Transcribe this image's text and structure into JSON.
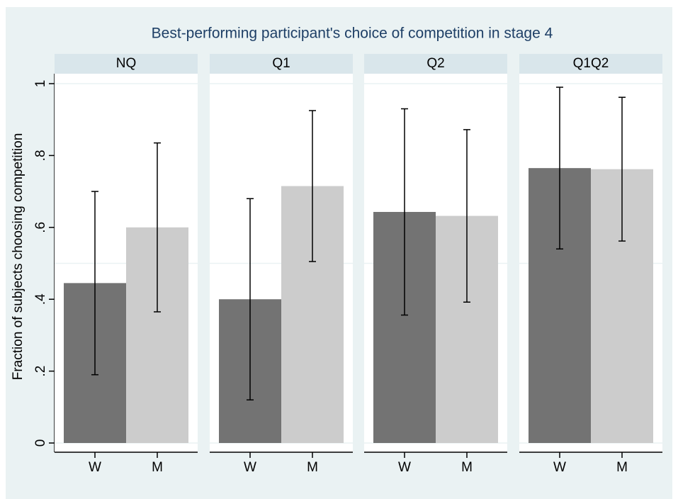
{
  "chart_data": {
    "type": "bar",
    "title": "Best-performing participant's choice of competition in stage 4",
    "ylabel": "Fraction of subjects choosing competition",
    "ylim": [
      0,
      1
    ],
    "yticks": [
      0,
      {
        "value": 0.2,
        "label": ".2"
      },
      {
        "value": 0.4,
        "label": ".4"
      },
      {
        "value": 0.6,
        "label": ".6"
      },
      {
        "value": 0.8,
        "label": ".8"
      },
      1
    ],
    "ygrid": [
      0,
      0.5,
      1
    ],
    "colors": [
      "#737373",
      "#cccccc"
    ],
    "panels": [
      {
        "title": "NQ",
        "categories": [
          "W",
          "M"
        ],
        "values": [
          0.445,
          0.6
        ],
        "errors": [
          0.255,
          0.235
        ]
      },
      {
        "title": "Q1",
        "categories": [
          "W",
          "M"
        ],
        "values": [
          0.4,
          0.715
        ],
        "errors": [
          0.28,
          0.21
        ]
      },
      {
        "title": "Q2",
        "categories": [
          "W",
          "M"
        ],
        "values": [
          0.643,
          0.632
        ],
        "errors": [
          0.287,
          0.24
        ]
      },
      {
        "title": "Q1Q2",
        "categories": [
          "W",
          "M"
        ],
        "values": [
          0.765,
          0.762
        ],
        "errors": [
          0.225,
          0.2
        ]
      }
    ]
  }
}
